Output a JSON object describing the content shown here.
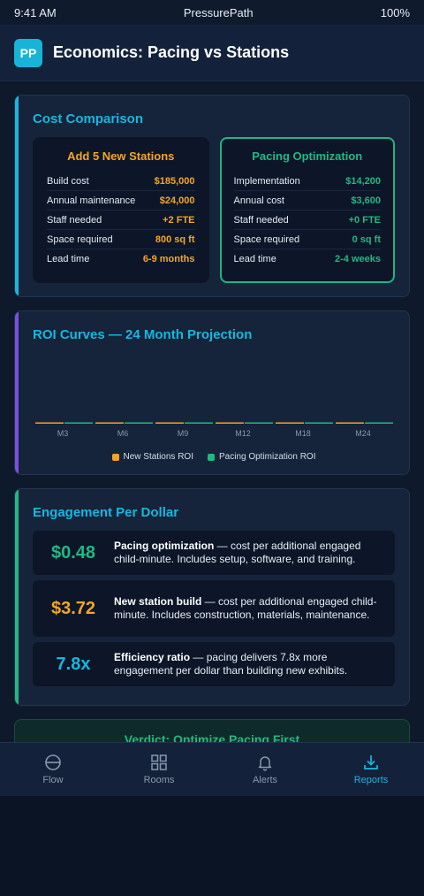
{
  "status_bar": {
    "time": "9:41 AM",
    "app": "PressurePath",
    "battery": "100%"
  },
  "header": {
    "logo": "PP",
    "title": "Economics: Pacing vs Stations"
  },
  "cost_comparison": {
    "title": "Cost Comparison",
    "new_stations": {
      "title": "Add 5 New Stations",
      "rows": [
        {
          "label": "Build cost",
          "value": "$185,000"
        },
        {
          "label": "Annual maintenance",
          "value": "$24,000"
        },
        {
          "label": "Staff needed",
          "value": "+2 FTE"
        },
        {
          "label": "Space required",
          "value": "800 sq ft"
        },
        {
          "label": "Lead time",
          "value": "6-9 months"
        }
      ]
    },
    "pacing": {
      "title": "Pacing Optimization",
      "rows": [
        {
          "label": "Implementation",
          "value": "$14,200"
        },
        {
          "label": "Annual cost",
          "value": "$3,600"
        },
        {
          "label": "Staff needed",
          "value": "+0 FTE"
        },
        {
          "label": "Space required",
          "value": "0 sq ft"
        },
        {
          "label": "Lead time",
          "value": "2-4 weeks"
        }
      ]
    }
  },
  "roi": {
    "title": "ROI Curves — 24 Month Projection",
    "legend": {
      "stations": "New Stations ROI",
      "pacing": "Pacing Optimization ROI"
    },
    "colors": {
      "stations": "#f5a524",
      "pacing": "#22b882"
    }
  },
  "chart_data": {
    "type": "bar",
    "categories": [
      "M3",
      "M6",
      "M9",
      "M12",
      "M18",
      "M24"
    ],
    "series": [
      {
        "name": "New Stations ROI",
        "values": [
          0,
          0,
          0,
          0,
          0,
          0
        ]
      },
      {
        "name": "Pacing Optimization ROI",
        "values": [
          0,
          0,
          0,
          0,
          0,
          0
        ]
      }
    ],
    "title": "ROI Curves — 24 Month Projection",
    "legend_position": "bottom",
    "grid": false
  },
  "engagement": {
    "title": "Engagement Per Dollar",
    "items": [
      {
        "value": "$0.48",
        "bold": "Pacing optimization",
        "text": " — cost per additional engaged child-minute. Includes setup, software, and training."
      },
      {
        "value": "$3.72",
        "bold": "New station build",
        "text": " — cost per additional engaged child-minute. Includes construction, materials, maintenance."
      },
      {
        "value": "7.8x",
        "bold": "Efficiency ratio",
        "text": " — pacing delivers 7.8x more engagement per dollar than building new exhibits."
      }
    ]
  },
  "verdict": {
    "title": "Verdict: Optimize Pacing First"
  },
  "nav": {
    "items": [
      {
        "label": "Flow",
        "icon": "flow-icon"
      },
      {
        "label": "Rooms",
        "icon": "rooms-icon"
      },
      {
        "label": "Alerts",
        "icon": "bell-icon"
      },
      {
        "label": "Reports",
        "icon": "download-icon"
      }
    ],
    "active": "Reports"
  }
}
